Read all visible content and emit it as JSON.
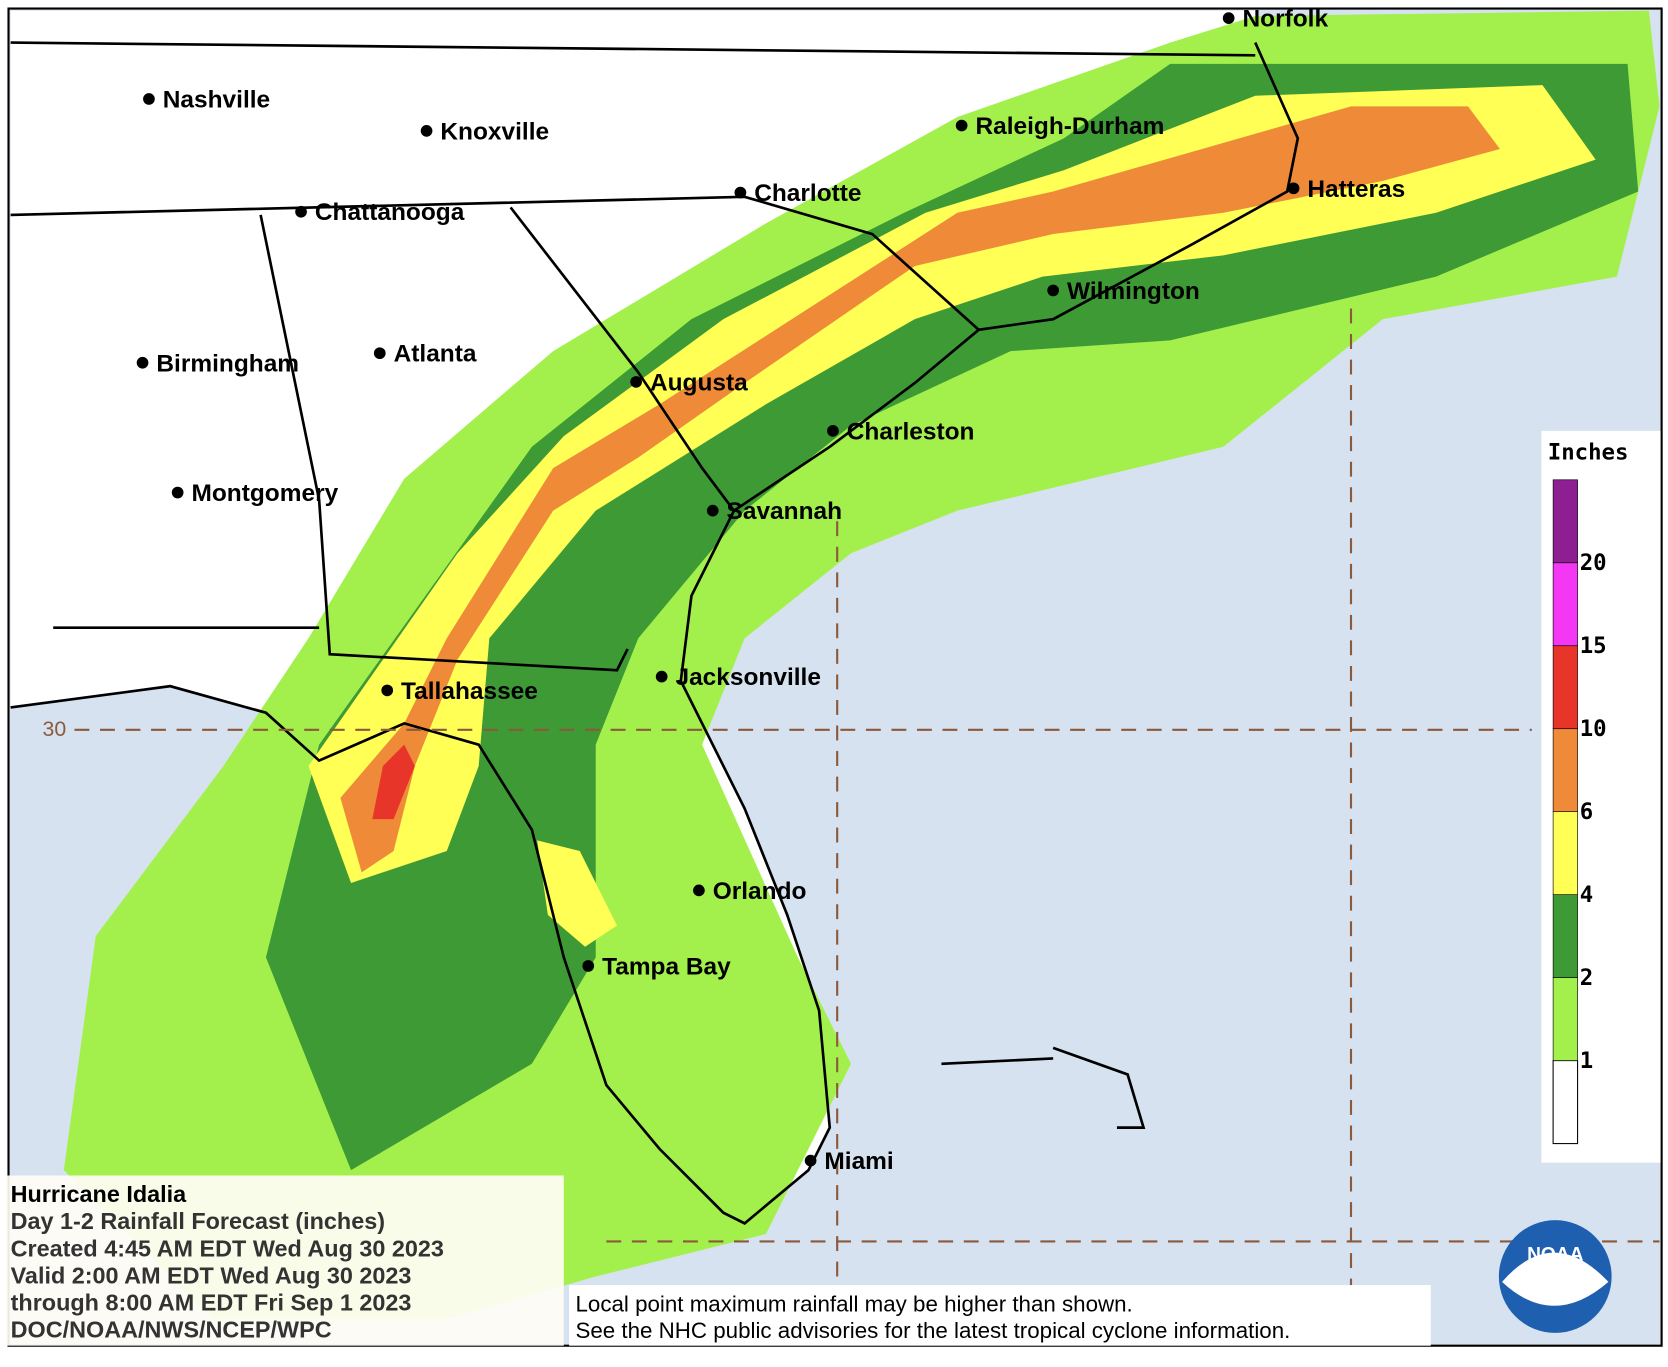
{
  "map": {
    "cities": [
      "Norfolk",
      "Nashville",
      "Knoxville",
      "Raleigh-Durham",
      "Charlotte",
      "Chattanooga",
      "Hatteras",
      "Wilmington",
      "Birmingham",
      "Atlanta",
      "Augusta",
      "Charleston",
      "Montgomery",
      "Savannah",
      "Jacksonville",
      "Tallahassee",
      "Orlando",
      "Tampa Bay",
      "Miami"
    ],
    "latitude_label": "30",
    "legend": {
      "title": "Inches",
      "levels": [
        {
          "value": 1,
          "color": "#a3f04c"
        },
        {
          "value": 2,
          "color": "#3d9a35"
        },
        {
          "value": 4,
          "color": "#ffff55"
        },
        {
          "value": 6,
          "color": "#ee8a38"
        },
        {
          "value": 10,
          "color": "#e8352a"
        },
        {
          "value": 15,
          "color": "#f437f4"
        },
        {
          "value": 20,
          "color": "#8e1f92"
        }
      ],
      "base_color": "#ffffff"
    },
    "info": [
      "Hurricane Idalia",
      "Day 1-2 Rainfall Forecast (inches)",
      "Created 4:45 AM EDT Wed Aug 30 2023",
      "Valid 2:00 AM EDT Wed Aug 30 2023",
      "through 8:00 AM EDT Fri Sep 1 2023",
      "DOC/NOAA/NWS/NCEP/WPC"
    ],
    "disclaimer": [
      "Local point maximum rainfall may be higher than shown.",
      "See the NHC public advisories for the latest tropical cyclone information."
    ],
    "logo": "NOAA"
  }
}
